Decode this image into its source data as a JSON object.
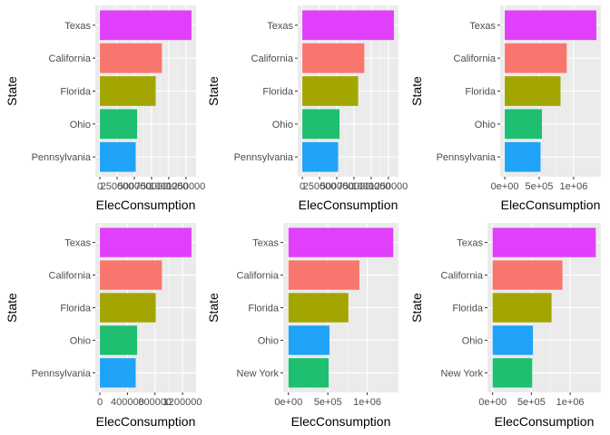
{
  "colors": {
    "panel_bg": "#ebebeb",
    "grid_major": "#ffffff",
    "grid_minor": "#f5f5f5",
    "tick_text": "#4d4d4d",
    "tick_line": "#333333",
    "Texas": "#E76BF3",
    "California": "#F8766D",
    "Florida": "#A3A500",
    "Ohio": "#00B0F6",
    "Pennsylvania": "#00BF7D",
    "New York": "#00BF7D"
  },
  "chart_data": [
    {
      "type": "bar",
      "orientation": "horizontal",
      "categories": [
        "Texas",
        "California",
        "Florida",
        "Ohio",
        "Pennsylvania"
      ],
      "values": [
        1330000,
        900000,
        810000,
        540000,
        520000
      ],
      "bar_colors": [
        "#E040FB",
        "#F8766D",
        "#A3A500",
        "#1EBF70",
        "#1FA3F7"
      ],
      "xlabel": "ElecConsumption",
      "ylabel": "State",
      "xlim": [
        -66500,
        1396500
      ],
      "x_ticks": [
        0,
        250000,
        500000,
        750000,
        1000000,
        1250000
      ],
      "x_tick_labels": [
        "0",
        "250000",
        "500000",
        "750000",
        "1000000",
        "1250000"
      ],
      "grid": true,
      "legend": "none"
    },
    {
      "type": "bar",
      "orientation": "horizontal",
      "categories": [
        "Texas",
        "California",
        "Florida",
        "Ohio",
        "Pennsylvania"
      ],
      "values": [
        1330000,
        900000,
        810000,
        540000,
        520000
      ],
      "bar_colors": [
        "#E040FB",
        "#F8766D",
        "#A3A500",
        "#1EBF70",
        "#1FA3F7"
      ],
      "xlabel": "ElecConsumption",
      "ylabel": "State",
      "xlim": [
        -66500,
        1396500
      ],
      "x_ticks": [
        0,
        250000,
        500000,
        750000,
        1000000,
        1250000
      ],
      "x_tick_labels": [
        "0",
        "250000",
        "500000",
        "750000",
        "1000000",
        "1250000"
      ],
      "grid": true,
      "legend": "none"
    },
    {
      "type": "bar",
      "orientation": "horizontal",
      "categories": [
        "Texas",
        "California",
        "Florida",
        "Ohio",
        "Pennsylvania"
      ],
      "values": [
        1330000,
        900000,
        810000,
        540000,
        520000
      ],
      "bar_colors": [
        "#E040FB",
        "#F8766D",
        "#A3A500",
        "#1EBF70",
        "#1FA3F7"
      ],
      "xlabel": "ElecConsumption",
      "ylabel": "State",
      "xlim": [
        -66500,
        1396500
      ],
      "x_ticks": [
        0,
        500000,
        1000000
      ],
      "x_tick_labels": [
        "0e+00",
        "5e+05",
        "1e+06"
      ],
      "grid": true,
      "legend": "none"
    },
    {
      "type": "bar",
      "orientation": "horizontal",
      "categories": [
        "Texas",
        "California",
        "Florida",
        "Ohio",
        "Pennsylvania"
      ],
      "values": [
        1330000,
        900000,
        810000,
        540000,
        520000
      ],
      "bar_colors": [
        "#E040FB",
        "#F8766D",
        "#A3A500",
        "#1EBF70",
        "#1FA3F7"
      ],
      "xlabel": "ElecConsumption",
      "ylabel": "State",
      "xlim": [
        -66500,
        1396500
      ],
      "x_ticks": [
        0,
        400000,
        800000,
        1200000
      ],
      "x_tick_labels": [
        "0",
        "400000",
        "800000",
        "1200000"
      ],
      "grid": true,
      "legend": "none"
    },
    {
      "type": "bar",
      "orientation": "horizontal",
      "categories": [
        "Texas",
        "California",
        "Florida",
        "Ohio",
        "New York"
      ],
      "values": [
        1330000,
        900000,
        760000,
        520000,
        510000
      ],
      "bar_colors": [
        "#E040FB",
        "#F8766D",
        "#A3A500",
        "#1FA3F7",
        "#1EBF70"
      ],
      "xlabel": "ElecConsumption",
      "ylabel": "State",
      "xlim": [
        -66500,
        1396500
      ],
      "x_ticks": [
        0,
        500000,
        1000000
      ],
      "x_tick_labels": [
        "0e+00",
        "5e+05",
        "1e+06"
      ],
      "grid": true,
      "legend": "none"
    },
    {
      "type": "bar",
      "orientation": "horizontal",
      "categories": [
        "Texas",
        "California",
        "Florida",
        "Ohio",
        "New York"
      ],
      "values": [
        1330000,
        900000,
        760000,
        520000,
        510000
      ],
      "bar_colors": [
        "#E040FB",
        "#F8766D",
        "#A3A500",
        "#1FA3F7",
        "#1EBF70"
      ],
      "xlabel": "ElecConsumption",
      "ylabel": "State",
      "xlim": [
        -66500,
        1396500
      ],
      "x_ticks": [
        0,
        500000,
        1000000
      ],
      "x_tick_labels": [
        "0e+00",
        "5e+05",
        "1e+06"
      ],
      "grid": true,
      "legend": "none"
    }
  ]
}
